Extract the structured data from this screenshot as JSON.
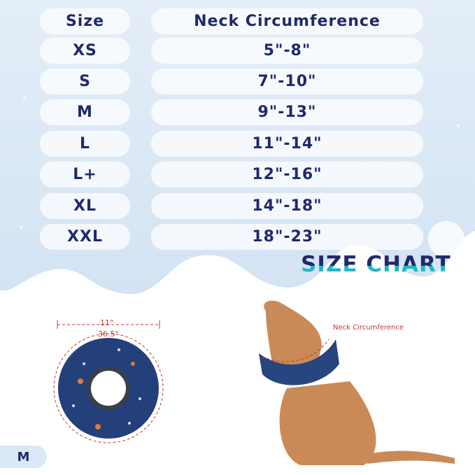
{
  "table": {
    "headers": {
      "size": "Size",
      "neck": "Neck Circumference"
    },
    "rows": [
      {
        "size": "XS",
        "neck": "5\"-8\""
      },
      {
        "size": "S",
        "neck": "7\"-10\""
      },
      {
        "size": "M",
        "neck": "9\"-13\""
      },
      {
        "size": "L",
        "neck": "11\"-14\""
      },
      {
        "size": "L+",
        "neck": "12\"-16\""
      },
      {
        "size": "XL",
        "neck": "14\"-18\""
      },
      {
        "size": "XXL",
        "neck": "18\"-23\""
      }
    ]
  },
  "title": "SIZE CHART",
  "diagram": {
    "collar_width": "11\"",
    "collar_circumference": "36.5\"",
    "neck_label": "Neck Circumference",
    "size_badge": "M"
  },
  "colors": {
    "text": "#1e2a6b",
    "accent": "#1fb7c9",
    "measure": "#c0392b",
    "background": "#dbe8f6"
  }
}
